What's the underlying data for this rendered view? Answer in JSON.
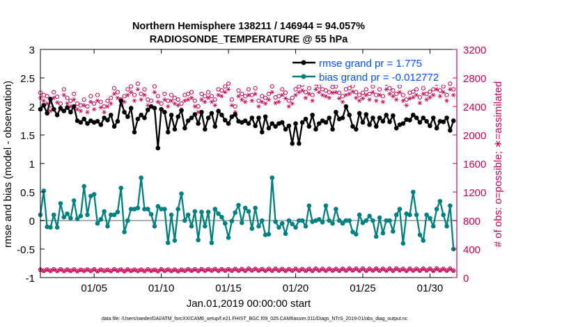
{
  "chart_data": {
    "type": "line",
    "title_line1": "Northern Hemisphere 138211 / 146944 = 94.057%",
    "title_line2": "RADIOSONDE_TEMPERATURE @ 55 hPa",
    "xlabel": "Jan.01,2019 00:00:00 start",
    "ylabel_left": "rmse and bias (model - observation)",
    "ylabel_right": "# of obs: o=possible; ∗=assimilated",
    "footer": "data file: /Users/raeder/DAI/ATM_forcXX/CAM6_setup/f.e21.FHIST_BGC.f09_025.CAM6assim.011/Diags_NTrS_2019-01/obs_diag_output.nc",
    "x_range": [
      1,
      32
    ],
    "x_ticks": [
      5,
      10,
      15,
      20,
      25,
      30
    ],
    "x_tick_labels": [
      "01/05",
      "01/10",
      "01/15",
      "01/20",
      "01/25",
      "01/30"
    ],
    "ylim_left": [
      -1,
      3
    ],
    "y_ticks_left": [
      "-1",
      "-0.5",
      "0",
      "0.5",
      "1",
      "1.5",
      "2",
      "2.5",
      "3"
    ],
    "ylim_right": [
      0,
      3200
    ],
    "y_ticks_right": [
      "0",
      "400",
      "800",
      "1200",
      "1600",
      "2000",
      "2400",
      "2800",
      "3200"
    ],
    "legend": [
      {
        "name": "rmse grand pr = 1.775",
        "color": "#000000",
        "text_color": "#0050ff"
      },
      {
        "name": "bias grand pr = -0.012772",
        "color": "#008080",
        "text_color": "#0050ff"
      }
    ],
    "colors": {
      "rmse": "#000000",
      "bias": "#008080",
      "obs": "#cc0055",
      "zero_line": "#b0b0b0",
      "right_axis": "#cc0055"
    },
    "x": [
      1.0,
      1.25,
      1.5,
      1.75,
      2.0,
      2.25,
      2.5,
      2.75,
      3.0,
      3.25,
      3.5,
      3.75,
      4.0,
      4.25,
      4.5,
      4.75,
      5.0,
      5.25,
      5.5,
      5.75,
      6.0,
      6.25,
      6.5,
      6.75,
      7.0,
      7.25,
      7.5,
      7.75,
      8.0,
      8.25,
      8.5,
      8.75,
      9.0,
      9.25,
      9.5,
      9.75,
      10.0,
      10.25,
      10.5,
      10.75,
      11.0,
      11.25,
      11.5,
      11.75,
      12.0,
      12.25,
      12.5,
      12.75,
      13.0,
      13.25,
      13.5,
      13.75,
      14.0,
      14.25,
      14.5,
      14.75,
      15.0,
      15.25,
      15.5,
      15.75,
      16.0,
      16.25,
      16.5,
      16.75,
      17.0,
      17.25,
      17.5,
      17.75,
      18.0,
      18.25,
      18.5,
      18.75,
      19.0,
      19.25,
      19.5,
      19.75,
      20.0,
      20.25,
      20.5,
      20.75,
      21.0,
      21.25,
      21.5,
      21.75,
      22.0,
      22.25,
      22.5,
      22.75,
      23.0,
      23.25,
      23.5,
      23.75,
      24.0,
      24.25,
      24.5,
      24.75,
      25.0,
      25.25,
      25.5,
      25.75,
      26.0,
      26.25,
      26.5,
      26.75,
      27.0,
      27.25,
      27.5,
      27.75,
      28.0,
      28.25,
      28.5,
      28.75,
      29.0,
      29.25,
      29.5,
      29.75,
      30.0,
      30.25,
      30.5,
      30.75,
      31.0,
      31.25,
      31.5,
      31.75
    ],
    "rmse": [
      1.95,
      2.02,
      1.88,
      2.13,
      1.95,
      1.85,
      1.97,
      1.92,
      1.98,
      1.9,
      2.0,
      1.75,
      1.72,
      1.78,
      1.7,
      1.75,
      1.72,
      1.74,
      1.68,
      1.8,
      1.76,
      1.85,
      1.65,
      1.74,
      2.1,
      1.9,
      1.82,
      1.97,
      1.55,
      1.78,
      1.85,
      1.8,
      1.94,
      2.0,
      1.97,
      1.27,
      1.95,
      1.9,
      1.55,
      1.85,
      1.6,
      1.82,
      1.93,
      1.62,
      1.75,
      1.8,
      1.86,
      1.7,
      1.9,
      1.6,
      1.8,
      1.88,
      1.65,
      1.92,
      1.85,
      1.76,
      1.7,
      1.82,
      1.86,
      1.74,
      1.72,
      1.75,
      1.7,
      1.8,
      1.66,
      1.8,
      1.55,
      1.82,
      1.62,
      1.7,
      1.65,
      1.7,
      1.72,
      1.6,
      1.66,
      1.35,
      1.7,
      1.35,
      1.72,
      1.78,
      1.65,
      1.85,
      1.6,
      1.7,
      1.75,
      1.72,
      1.8,
      1.6,
      1.9,
      1.78,
      1.8,
      2.0,
      1.85,
      1.65,
      1.6,
      1.88,
      1.72,
      1.86,
      1.68,
      1.8,
      1.65,
      1.8,
      1.74,
      1.85,
      1.73,
      1.84,
      1.62,
      1.68,
      1.7,
      1.77,
      1.76,
      1.85,
      1.8,
      1.72,
      1.8,
      1.74,
      1.66,
      1.8,
      1.62,
      1.74,
      1.73,
      1.8,
      1.58,
      1.75,
      1.7,
      1.65
    ],
    "bias": [
      0.1,
      0.52,
      -0.11,
      -0.12,
      0.1,
      -0.12,
      0.3,
      0.06,
      0.12,
      0.04,
      0.35,
      0.03,
      0.08,
      0.6,
      0.1,
      0.43,
      0.46,
      -0.05,
      0.02,
      0.16,
      -0.1,
      0.1,
      0.1,
      0.15,
      0.57,
      -0.2,
      0.0,
      0.2,
      0.2,
      0.22,
      0.75,
      0.2,
      0.2,
      0.11,
      -0.1,
      0.25,
      0.2,
      0.2,
      -0.39,
      0.1,
      -0.35,
      0.2,
      0.47,
      0.0,
      0.1,
      -0.1,
      0.16,
      -0.34,
      0.15,
      -0.1,
      0.15,
      -0.39,
      0.2,
      0.12,
      0.06,
      -0.05,
      -0.3,
      -0.01,
      0.14,
      0.27,
      -0.04,
      0.22,
      0.16,
      -0.14,
      0.22,
      -0.1,
      0.0,
      -0.25,
      -0.24,
      0.75,
      -0.02,
      -0.12,
      -0.05,
      -0.23,
      0.0,
      -0.06,
      -0.12,
      0.0,
      0.0,
      -0.1,
      0.26,
      -0.02,
      0.0,
      0.02,
      -0.03,
      0.26,
      0.0,
      -0.05,
      0.2,
      0.0,
      -0.05,
      0.0,
      0.0,
      -0.2,
      -0.24,
      0.1,
      -0.04,
      0.0,
      0.08,
      0.0,
      -0.28,
      0.05,
      -0.22,
      0.0,
      0.0,
      -0.19,
      0.1,
      0.2,
      -0.4,
      0.12,
      0.1,
      0.5,
      0.1,
      -0.25,
      -0.35,
      0.1,
      0.04,
      -0.1,
      0.2,
      0.34,
      0.1,
      -0.1,
      0.26,
      -0.5,
      0.26,
      0.16,
      -0.25,
      0.1,
      -0.68,
      -0.67
    ],
    "obs_possible": [
      112,
      96,
      114,
      96,
      117,
      95,
      116,
      94,
      113,
      96,
      115,
      93,
      111,
      97,
      114,
      95,
      116,
      92,
      113,
      96,
      110,
      94,
      117,
      98,
      114,
      92,
      115,
      96,
      112,
      95,
      113,
      94,
      116,
      97,
      111,
      93,
      118,
      96,
      114,
      95,
      113,
      92,
      112,
      97,
      119,
      98,
      117,
      95,
      120,
      99,
      118,
      101,
      121,
      97,
      119,
      100,
      118,
      98,
      122,
      99,
      121,
      97,
      126,
      102,
      124,
      100,
      121,
      98,
      123,
      99,
      125,
      101,
      122,
      97,
      120,
      99,
      124,
      100,
      121,
      98,
      123,
      96,
      126,
      102,
      123,
      99,
      124,
      100,
      122,
      98,
      125,
      101,
      127,
      103,
      126,
      100,
      128,
      98,
      124,
      102,
      127,
      99,
      125,
      101,
      126,
      98,
      128,
      104,
      123,
      97,
      126,
      101,
      124,
      99,
      127,
      102,
      125,
      97,
      129,
      103,
      124,
      100,
      126,
      98,
      122,
      103
    ],
    "obs_assim": [
      107,
      92,
      109,
      91,
      112,
      90,
      111,
      89,
      108,
      91,
      110,
      88,
      106,
      92,
      109,
      90,
      111,
      87,
      108,
      91,
      105,
      89,
      112,
      93,
      109,
      87,
      110,
      91,
      107,
      90,
      108,
      89,
      111,
      92,
      106,
      88,
      113,
      91,
      109,
      90,
      108,
      87,
      107,
      92,
      114,
      93,
      112,
      90,
      115,
      94,
      113,
      96,
      116,
      92,
      114,
      95,
      113,
      93,
      117,
      94,
      116,
      92,
      121,
      97,
      119,
      95,
      116,
      93,
      118,
      94,
      120,
      96,
      117,
      92,
      115,
      94,
      119,
      95,
      116,
      93,
      118,
      91,
      121,
      97,
      118,
      94,
      119,
      95,
      117,
      93,
      120,
      96,
      122,
      98,
      121,
      95,
      123,
      93,
      119,
      97,
      122,
      94,
      120,
      96,
      121,
      93,
      123,
      99,
      118,
      92,
      121,
      96,
      119,
      94,
      122,
      97,
      120,
      92,
      124,
      98,
      119,
      95,
      121,
      93,
      117,
      98
    ],
    "open_circles_top": [
      2.24,
      2.2,
      2.18,
      2.02,
      2.25,
      2.17,
      2.05,
      2.3,
      2.15,
      2.1,
      2.22,
      2.05,
      2.02,
      2.12,
      2.0,
      2.18,
      2.05,
      2.2,
      2.08,
      2.0,
      2.1,
      2.15,
      2.32,
      2.25,
      2.12,
      2.18,
      2.3,
      2.35,
      2.2,
      2.4,
      2.22,
      2.3,
      2.12,
      2.1,
      2.35,
      2.18,
      2.05,
      2.22,
      2.1,
      2.2,
      2.15,
      2.12,
      2.05,
      2.2,
      2.22,
      2.25,
      2.1,
      2.0,
      2.22,
      2.18,
      2.25,
      2.18,
      2.12,
      2.3,
      2.28,
      2.35,
      2.4,
      2.12,
      2.0,
      2.28,
      2.22,
      2.18,
      2.3,
      2.2,
      2.32,
      2.1,
      2.18,
      2.15,
      2.22,
      2.35,
      2.16,
      2.18,
      2.3,
      2.24,
      2.1,
      2.15,
      2.3,
      2.35,
      2.38,
      2.25,
      2.32,
      2.2,
      2.4,
      2.35,
      2.3,
      2.28,
      2.25,
      2.34,
      2.35,
      2.24,
      2.18,
      2.3,
      2.32,
      2.36,
      2.25,
      2.2,
      2.24,
      2.3,
      2.22,
      2.35,
      2.2,
      2.3,
      2.18,
      2.4,
      2.32,
      2.28,
      2.22,
      2.35,
      2.2,
      2.12,
      2.24,
      2.26,
      2.3,
      2.16,
      2.32,
      2.22,
      2.26,
      2.3,
      2.4,
      2.28,
      2.35,
      2.2,
      2.4,
      2.3,
      2.28,
      2.3
    ],
    "stars_top": [
      2.15,
      2.1,
      2.05,
      1.92,
      2.15,
      2.07,
      1.95,
      2.2,
      2.05,
      2.0,
      2.12,
      1.95,
      1.92,
      2.02,
      1.9,
      2.08,
      1.95,
      2.1,
      1.98,
      1.9,
      2.0,
      2.05,
      2.22,
      2.15,
      2.02,
      2.08,
      2.2,
      2.25,
      2.1,
      2.3,
      2.12,
      2.2,
      2.02,
      2.0,
      2.25,
      2.08,
      1.95,
      2.12,
      2.0,
      2.1,
      2.05,
      2.02,
      1.95,
      2.1,
      2.12,
      2.15,
      2.0,
      1.9,
      2.12,
      2.08,
      2.15,
      2.08,
      2.02,
      2.2,
      2.18,
      2.25,
      2.3,
      2.02,
      1.9,
      2.18,
      2.12,
      2.08,
      2.2,
      2.1,
      2.22,
      2.0,
      2.08,
      2.05,
      2.12,
      2.25,
      2.06,
      2.08,
      2.2,
      2.14,
      2.0,
      2.05,
      2.2,
      2.25,
      2.28,
      2.15,
      2.22,
      2.1,
      2.3,
      2.25,
      2.2,
      2.18,
      2.15,
      2.24,
      2.25,
      2.14,
      2.08,
      2.2,
      2.22,
      2.26,
      2.15,
      2.1,
      2.14,
      2.2,
      2.12,
      2.25,
      2.1,
      2.2,
      2.08,
      2.3,
      2.22,
      2.18,
      2.12,
      2.25,
      2.1,
      2.02,
      2.14,
      2.16,
      2.2,
      2.06,
      2.22,
      2.12,
      2.16,
      2.2,
      2.3,
      2.18,
      2.25,
      2.1,
      2.3,
      2.2,
      2.18,
      2.2
    ]
  }
}
